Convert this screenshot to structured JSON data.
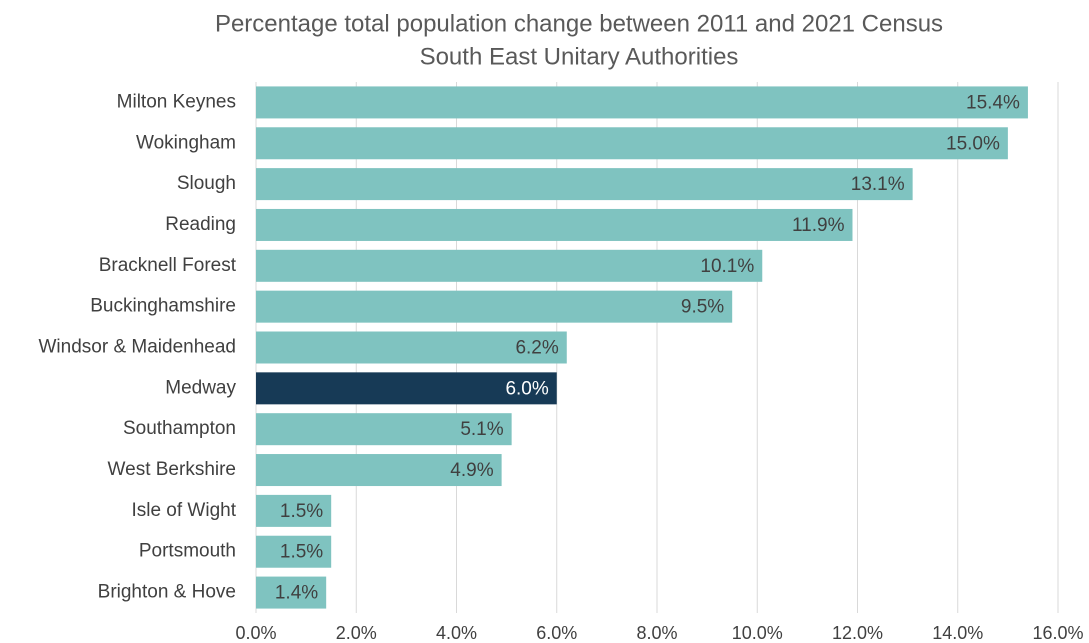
{
  "chart_data": {
    "type": "barh",
    "title": "Percentage total population change between 2011 and 2021 Census",
    "subtitle": "South East Unitary Authorities",
    "categories": [
      "Milton Keynes",
      "Wokingham",
      "Slough",
      "Reading",
      "Bracknell Forest",
      "Buckinghamshire",
      "Windsor & Maidenhead",
      "Medway",
      "Southampton",
      "West Berkshire",
      "Isle of Wight",
      "Portsmouth",
      "Brighton & Hove"
    ],
    "values": [
      15.4,
      15.0,
      13.1,
      11.9,
      10.1,
      9.5,
      6.2,
      6.0,
      5.1,
      4.9,
      1.5,
      1.5,
      1.4
    ],
    "value_labels": [
      "15.4%",
      "15.0%",
      "13.1%",
      "11.9%",
      "10.1%",
      "9.5%",
      "6.2%",
      "6.0%",
      "5.1%",
      "4.9%",
      "1.5%",
      "1.5%",
      "1.4%"
    ],
    "colors": [
      "#7fc3c0",
      "#7fc3c0",
      "#7fc3c0",
      "#7fc3c0",
      "#7fc3c0",
      "#7fc3c0",
      "#7fc3c0",
      "#173a56",
      "#7fc3c0",
      "#7fc3c0",
      "#7fc3c0",
      "#7fc3c0",
      "#7fc3c0"
    ],
    "xlim": [
      0,
      16
    ],
    "xticks": [
      {
        "value": 0,
        "label": "0.0%"
      },
      {
        "value": 2,
        "label": "2.0%"
      },
      {
        "value": 4,
        "label": "4.0%"
      },
      {
        "value": 6,
        "label": "6.0%"
      },
      {
        "value": 8,
        "label": "8.0%"
      },
      {
        "value": 10,
        "label": "10.0%"
      },
      {
        "value": 12,
        "label": "12.0%"
      },
      {
        "value": 14,
        "label": "14.0%"
      },
      {
        "value": 16,
        "label": "16.0%"
      }
    ],
    "grid": true
  }
}
